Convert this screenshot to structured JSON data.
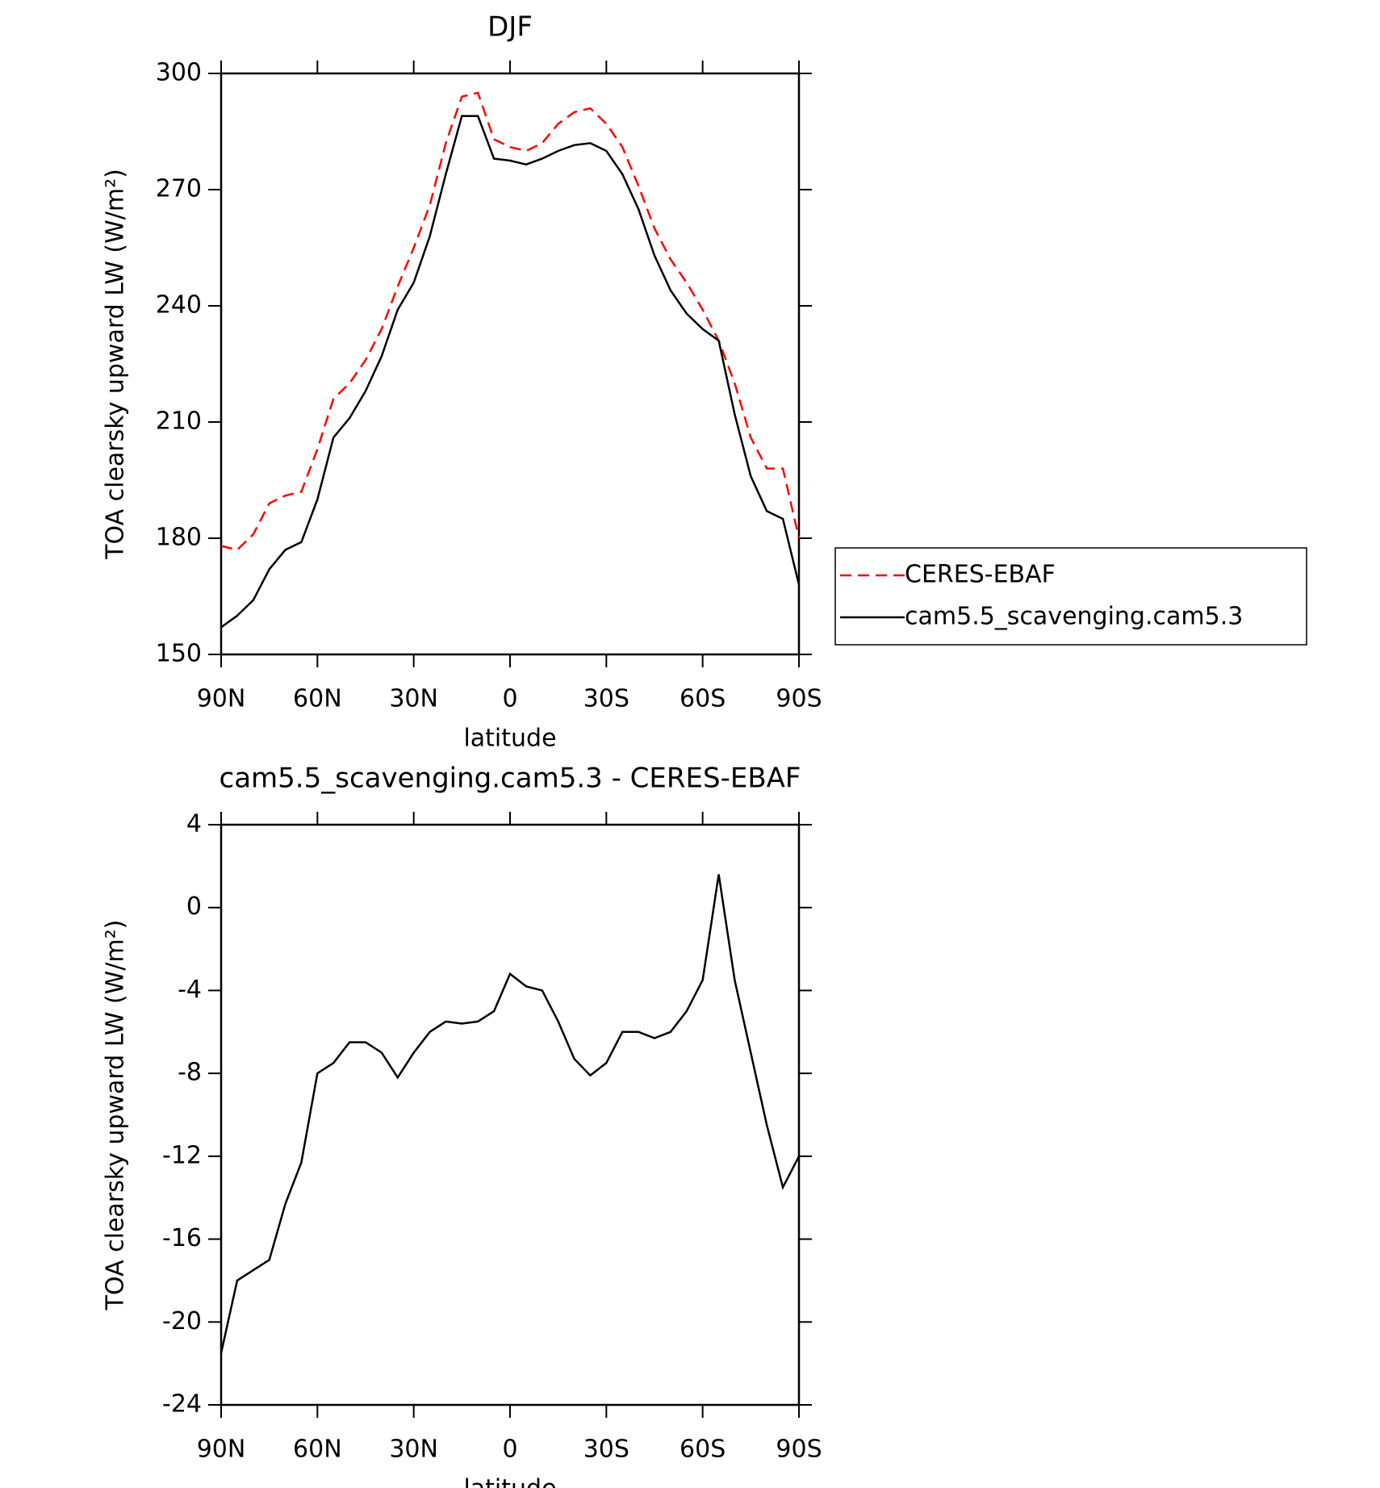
{
  "chart_data": [
    {
      "type": "line",
      "title": "DJF",
      "x_label": "latitude",
      "y_label": "TOA clearsky upward LW (W/m²)",
      "x": [
        90,
        85,
        80,
        75,
        70,
        65,
        60,
        55,
        50,
        45,
        40,
        35,
        30,
        25,
        20,
        15,
        10,
        5,
        0,
        -5,
        -10,
        -15,
        -20,
        -25,
        -30,
        -35,
        -40,
        -45,
        -50,
        -55,
        -60,
        -65,
        -70,
        -75,
        -80,
        -85,
        -90
      ],
      "series": [
        {
          "name": "CERES-EBAF",
          "color": "#ff0000",
          "dash": true,
          "values": [
            178,
            177,
            181,
            189,
            191,
            192,
            203,
            216,
            220,
            226,
            234,
            245,
            255,
            266,
            282,
            294,
            295,
            283,
            281,
            280,
            282,
            287,
            290,
            291,
            287,
            281,
            271,
            260,
            252,
            246,
            239,
            231,
            220,
            206,
            198,
            198,
            180
          ]
        },
        {
          "name": "cam5.5_scavenging.cam5.3",
          "color": "#000000",
          "dash": false,
          "values": [
            157,
            160,
            164,
            172,
            177,
            179,
            190,
            206,
            211,
            218,
            227,
            239,
            246,
            258,
            274,
            289,
            289,
            278,
            277.5,
            276.5,
            278,
            280,
            281.5,
            282,
            280,
            274,
            265,
            253,
            244,
            238,
            234,
            231,
            212,
            196,
            187,
            185,
            168
          ]
        }
      ],
      "xlim": [
        90,
        -90
      ],
      "xticks": [
        {
          "value": 90,
          "label": "90N"
        },
        {
          "value": 60,
          "label": "60N"
        },
        {
          "value": 30,
          "label": "30N"
        },
        0,
        {
          "value": -30,
          "label": "30S"
        },
        {
          "value": -60,
          "label": "60S"
        },
        {
          "value": -90,
          "label": "90S"
        }
      ],
      "ylim": [
        150,
        300
      ],
      "yticks": [
        150,
        180,
        210,
        240,
        270,
        300
      ],
      "legend": "right"
    },
    {
      "type": "line",
      "title": "cam5.5_scavenging.cam5.3 - CERES-EBAF",
      "x_label": "latitude",
      "y_label": "TOA clearsky upward LW (W/m²)",
      "x": [
        90,
        85,
        80,
        75,
        70,
        65,
        60,
        55,
        50,
        45,
        40,
        35,
        30,
        25,
        20,
        15,
        10,
        5,
        0,
        -5,
        -10,
        -15,
        -20,
        -25,
        -30,
        -35,
        -40,
        -45,
        -50,
        -55,
        -60,
        -65,
        -70,
        -75,
        -80,
        -85,
        -90
      ],
      "series": [
        {
          "color": "#000000",
          "dash": false,
          "values": [
            -21.5,
            -18,
            -17.5,
            -17,
            -14.3,
            -12.3,
            -8,
            -7.5,
            -6.5,
            -6.5,
            -7,
            -8.2,
            -7,
            -6,
            -5.5,
            -5.6,
            -5.5,
            -5,
            -3.2,
            -3.8,
            -4,
            -5.5,
            -7.3,
            -8.1,
            -7.5,
            -6,
            -6,
            -6.3,
            -6,
            -5,
            -3.5,
            1.6,
            -3.5,
            -7,
            -10.5,
            -13.5,
            -12
          ]
        }
      ],
      "xlim": [
        90,
        -90
      ],
      "xticks": [
        {
          "value": 90,
          "label": "90N"
        },
        {
          "value": 60,
          "label": "60N"
        },
        {
          "value": 30,
          "label": "30N"
        },
        0,
        {
          "value": -30,
          "label": "30S"
        },
        {
          "value": -60,
          "label": "60S"
        },
        {
          "value": -90,
          "label": "90S"
        }
      ],
      "ylim": [
        -24,
        4
      ],
      "yticks": [
        -24,
        -20,
        -16,
        -12,
        -8,
        -4,
        0,
        4
      ]
    }
  ]
}
